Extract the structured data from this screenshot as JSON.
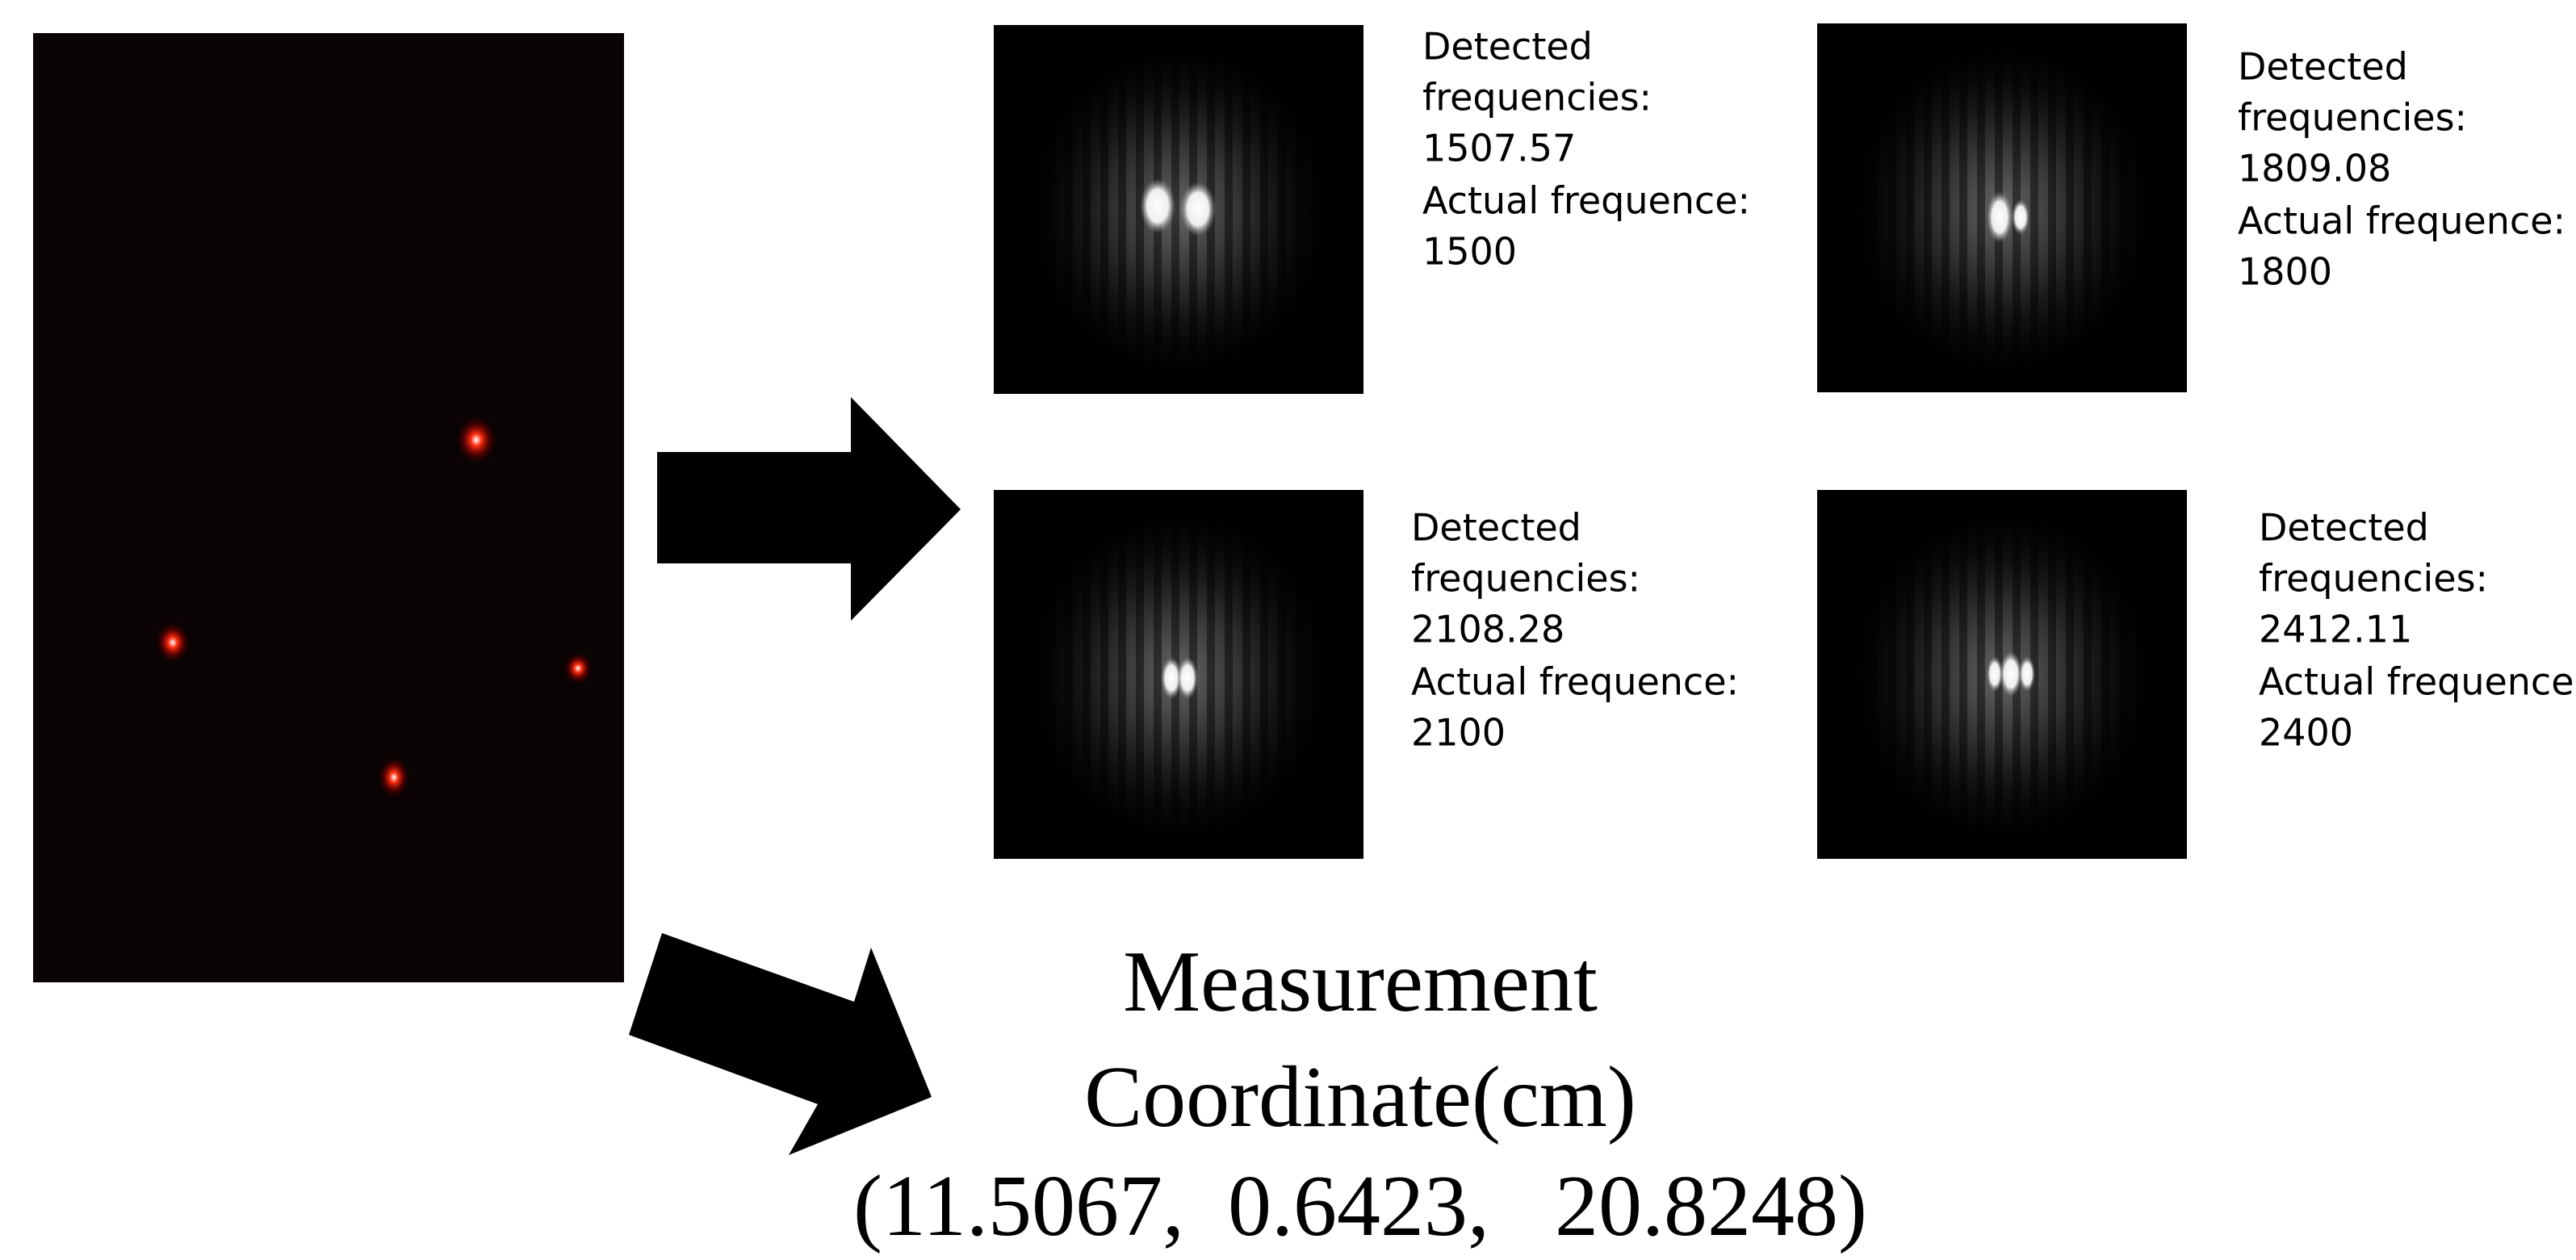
{
  "panels": [
    {
      "detected_label": "Detected",
      "detected_label_2": "frequencies:",
      "detected": "1507.57",
      "actual_label": "Actual frequence:",
      "actual": "1500"
    },
    {
      "detected_label": "Detected",
      "detected_label_2": "frequencies:",
      "detected": "1809.08",
      "actual_label": "Actual frequence:",
      "actual": "1800"
    },
    {
      "detected_label": "Detected",
      "detected_label_2": "frequencies:",
      "detected": "2108.28",
      "actual_label": "Actual frequence:",
      "actual": "2100"
    },
    {
      "detected_label": "Detected",
      "detected_label_2": "frequencies:",
      "detected": "2412.11",
      "actual_label": "Actual frequence:",
      "actual": "2400"
    }
  ],
  "result": {
    "line1": "Measurement",
    "line2": "Coordinate(cm)",
    "line3": "(11.5067,  0.6423,   20.8248)"
  }
}
